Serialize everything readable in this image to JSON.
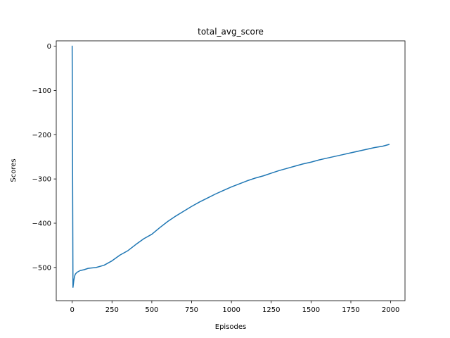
{
  "chart_data": {
    "type": "line",
    "title": "total_avg_score",
    "xlabel": "Episodes",
    "ylabel": "Scores",
    "xlim": [
      -100,
      2090
    ],
    "ylim": [
      -575,
      12
    ],
    "xticks": [
      0,
      250,
      500,
      750,
      1000,
      1250,
      1500,
      1750,
      2000
    ],
    "yticks": [
      0,
      -100,
      -200,
      -300,
      -400,
      -500
    ],
    "xtick_labels": [
      "0",
      "250",
      "500",
      "750",
      "1000",
      "1250",
      "1500",
      "1750",
      "2000"
    ],
    "ytick_labels": [
      "0",
      "−100",
      "−200",
      "−300",
      "−400",
      "−500"
    ],
    "grid": false,
    "series": [
      {
        "color": "#1f77b4",
        "x": [
          0,
          5,
          10,
          15,
          20,
          30,
          40,
          50,
          75,
          100,
          150,
          200,
          250,
          300,
          350,
          400,
          450,
          500,
          550,
          600,
          650,
          700,
          750,
          800,
          850,
          900,
          950,
          1000,
          1050,
          1100,
          1150,
          1200,
          1250,
          1300,
          1350,
          1400,
          1450,
          1500,
          1550,
          1600,
          1650,
          1700,
          1750,
          1800,
          1850,
          1900,
          1950,
          1990
        ],
        "y": [
          0,
          -545,
          -530,
          -520,
          -515,
          -511,
          -509,
          -507,
          -505,
          -502,
          -500,
          -495,
          -485,
          -472,
          -462,
          -448,
          -435,
          -425,
          -410,
          -396,
          -384,
          -373,
          -362,
          -352,
          -343,
          -334,
          -326,
          -318,
          -311,
          -304,
          -298,
          -293,
          -287,
          -281,
          -276,
          -271,
          -266,
          -262,
          -257,
          -253,
          -249,
          -245,
          -241,
          -237,
          -233,
          -229,
          -226,
          -222
        ]
      }
    ]
  }
}
